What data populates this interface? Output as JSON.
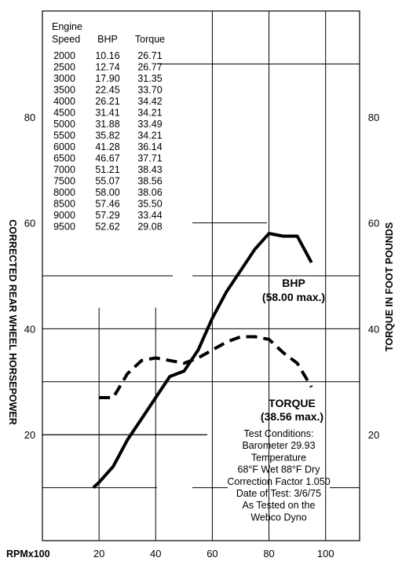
{
  "chart_data": {
    "type": "line",
    "x_axis_label": "RPMx100",
    "x_ticks": [
      20,
      40,
      60,
      80,
      100
    ],
    "left_axis_label": "CORRECTED REAR WHEEL HORSEPOWER",
    "right_axis_label": "TORQUE IN FOOT POUNDS",
    "y_ticks_left": [
      20,
      40,
      60,
      80
    ],
    "y_ticks_right": [
      20,
      40,
      60,
      80
    ],
    "xlim": [
      0,
      112
    ],
    "ylim": [
      0,
      100
    ],
    "grid": "partial",
    "table": {
      "headers": [
        "Engine\nSpeed",
        "BHP",
        "Torque"
      ],
      "header_line1": [
        "Engine",
        "",
        ""
      ],
      "header_line2": [
        "Speed",
        "BHP",
        "Torque"
      ],
      "rows": [
        [
          "2000",
          "10.16",
          "26.71"
        ],
        [
          "2500",
          "12.74",
          "26.77"
        ],
        [
          "3000",
          "17.90",
          "31.35"
        ],
        [
          "3500",
          "22.45",
          "33.70"
        ],
        [
          "4000",
          "26.21",
          "34.42"
        ],
        [
          "4500",
          "31.41",
          "34.21"
        ],
        [
          "5000",
          "31.88",
          "33.49"
        ],
        [
          "5500",
          "35.82",
          "34.21"
        ],
        [
          "6000",
          "41.28",
          "36.14"
        ],
        [
          "6500",
          "46.67",
          "37.71"
        ],
        [
          "7000",
          "51.21",
          "38.43"
        ],
        [
          "7500",
          "55.07",
          "38.56"
        ],
        [
          "8000",
          "58.00",
          "38.06"
        ],
        [
          "8500",
          "57.46",
          "35.50"
        ],
        [
          "9000",
          "57.29",
          "33.44"
        ],
        [
          "9500",
          "52.62",
          "29.08"
        ]
      ]
    },
    "series": [
      {
        "name": "BHP",
        "style": "solid",
        "x": [
          18,
          20,
          25,
          30,
          35,
          40,
          45,
          50,
          55,
          60,
          65,
          70,
          75,
          80,
          85,
          90,
          95
        ],
        "y": [
          10,
          11,
          14,
          19,
          23,
          27,
          31,
          32,
          36,
          42,
          47,
          51,
          55,
          58,
          57.5,
          57.5,
          52.5
        ]
      },
      {
        "name": "TORQUE",
        "style": "dashed",
        "x": [
          20,
          25,
          30,
          35,
          40,
          45,
          50,
          55,
          60,
          65,
          70,
          75,
          80,
          85,
          90,
          95
        ],
        "y": [
          27,
          27,
          31.5,
          34,
          34.5,
          34,
          33.5,
          34.5,
          36,
          37.5,
          38.5,
          38.5,
          38,
          35.5,
          33.5,
          29
        ]
      }
    ],
    "annotations": {
      "bhp_label": "BHP",
      "bhp_max": "(58.00 max.)",
      "torque_label": "TORQUE",
      "torque_max": "(38.56 max.)",
      "conditions": [
        "Test Conditions:",
        "Barometer 29.93",
        "Temperature",
        "68°F Wet 88°F Dry",
        "Correction Factor 1.050",
        "Date of Test: 3/6/75",
        "As Tested on the",
        "Webco Dyno"
      ]
    }
  }
}
